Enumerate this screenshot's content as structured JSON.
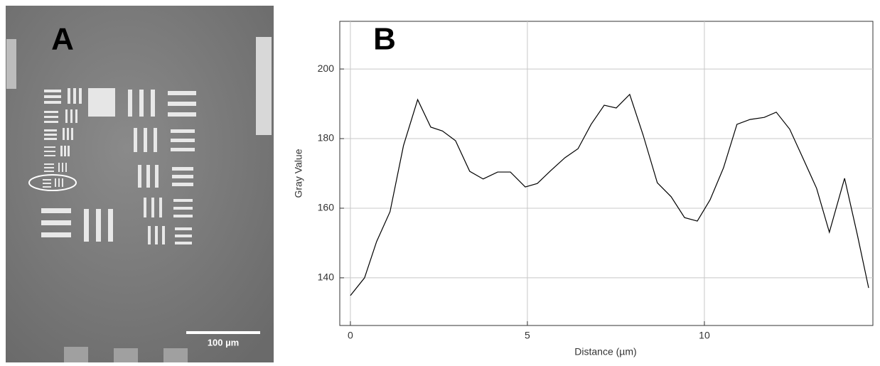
{
  "image_panel": {
    "label": "A",
    "scale_bar": "100 µm"
  },
  "chart_data": {
    "type": "line",
    "panel_label": "B",
    "x_label": "Distance (µm)",
    "y_label": "Gray Value",
    "x": [
      0,
      0.4,
      0.74,
      1.12,
      1.5,
      1.9,
      2.27,
      2.6,
      2.97,
      3.37,
      3.75,
      4.16,
      4.52,
      4.94,
      5.28,
      5.66,
      6.06,
      6.43,
      6.8,
      7.17,
      7.51,
      7.89,
      8.27,
      8.67,
      9.06,
      9.44,
      9.8,
      10.16,
      10.54,
      10.92,
      11.29,
      11.69,
      12.03,
      12.41,
      12.77,
      13.17,
      13.53,
      13.96,
      14.32,
      14.64
    ],
    "values": [
      134.9,
      140,
      150.4,
      159,
      178,
      191.2,
      183.3,
      182.2,
      179.4,
      170.6,
      168.4,
      170.4,
      170.4,
      166.1,
      167.1,
      170.8,
      174.5,
      177.1,
      184.1,
      189.6,
      188.8,
      192.7,
      181,
      167.3,
      163.3,
      157.3,
      156.3,
      162.4,
      171.6,
      184.1,
      185.5,
      186.1,
      187.6,
      182.7,
      174.7,
      165.7,
      153.1,
      168.6,
      152.4,
      137.1
    ],
    "color": "#000000",
    "xlim": [
      -0.3,
      14.76
    ],
    "ylim": [
      126.3,
      213.7
    ],
    "xticks": [
      0,
      5,
      10
    ],
    "yticks": [
      140,
      160,
      180,
      200
    ],
    "grid": true
  }
}
